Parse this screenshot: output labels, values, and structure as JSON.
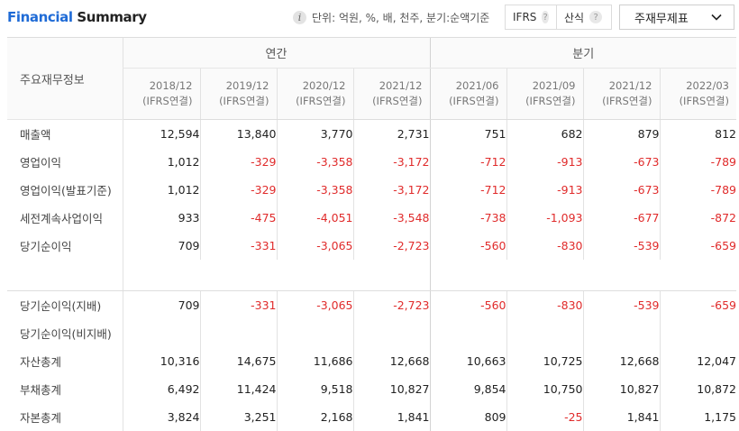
{
  "header": {
    "title_part1": "Financial",
    "title_part2": "Summary",
    "unit_text": "단위: 억원, %, 배, 천주, 분기:순액기준",
    "ifrs_label": "IFRS",
    "calc_label": "산식",
    "help_glyph": "?",
    "info_glyph": "i",
    "dropdown_value": "주재무제표"
  },
  "table": {
    "label_header": "주요재무정보",
    "group_annual": "연간",
    "group_quarter": "분기",
    "columns": [
      {
        "period": "2018/12",
        "basis": "(IFRS연결)"
      },
      {
        "period": "2019/12",
        "basis": "(IFRS연결)"
      },
      {
        "period": "2020/12",
        "basis": "(IFRS연결)"
      },
      {
        "period": "2021/12",
        "basis": "(IFRS연결)"
      },
      {
        "period": "2021/06",
        "basis": "(IFRS연결)"
      },
      {
        "period": "2021/09",
        "basis": "(IFRS연결)"
      },
      {
        "period": "2021/12",
        "basis": "(IFRS연결)"
      },
      {
        "period": "2022/03",
        "basis": "(IFRS연결)"
      }
    ],
    "rows_a": [
      {
        "label": "매출액",
        "values": [
          "12,594",
          "13,840",
          "3,770",
          "2,731",
          "751",
          "682",
          "879",
          "812"
        ]
      },
      {
        "label": "영업이익",
        "values": [
          "1,012",
          "-329",
          "-3,358",
          "-3,172",
          "-712",
          "-913",
          "-673",
          "-789"
        ]
      },
      {
        "label": "영업이익(발표기준)",
        "values": [
          "1,012",
          "-329",
          "-3,358",
          "-3,172",
          "-712",
          "-913",
          "-673",
          "-789"
        ]
      },
      {
        "label": "세전계속사업이익",
        "values": [
          "933",
          "-475",
          "-4,051",
          "-3,548",
          "-738",
          "-1,093",
          "-677",
          "-872"
        ]
      },
      {
        "label": "당기순이익",
        "values": [
          "709",
          "-331",
          "-3,065",
          "-2,723",
          "-560",
          "-830",
          "-539",
          "-659"
        ]
      }
    ],
    "rows_b": [
      {
        "label": "당기순이익(지배)",
        "values": [
          "709",
          "-331",
          "-3,065",
          "-2,723",
          "-560",
          "-830",
          "-539",
          "-659"
        ]
      },
      {
        "label": "당기순이익(비지배)",
        "values": [
          "",
          "",
          "",
          "",
          "",
          "",
          "",
          ""
        ]
      },
      {
        "label": "자산총계",
        "values": [
          "10,316",
          "14,675",
          "11,686",
          "12,668",
          "10,663",
          "10,725",
          "12,668",
          "12,047"
        ]
      },
      {
        "label": "부채총계",
        "values": [
          "6,492",
          "11,424",
          "9,518",
          "10,827",
          "9,854",
          "10,750",
          "10,827",
          "10,872"
        ]
      },
      {
        "label": "자본총계",
        "values": [
          "3,824",
          "3,251",
          "2,168",
          "1,841",
          "809",
          "-25",
          "1,841",
          "1,175"
        ]
      }
    ],
    "negative_color": "#e02b2b"
  },
  "colors": {
    "title_blue": "#1f6bd6"
  }
}
